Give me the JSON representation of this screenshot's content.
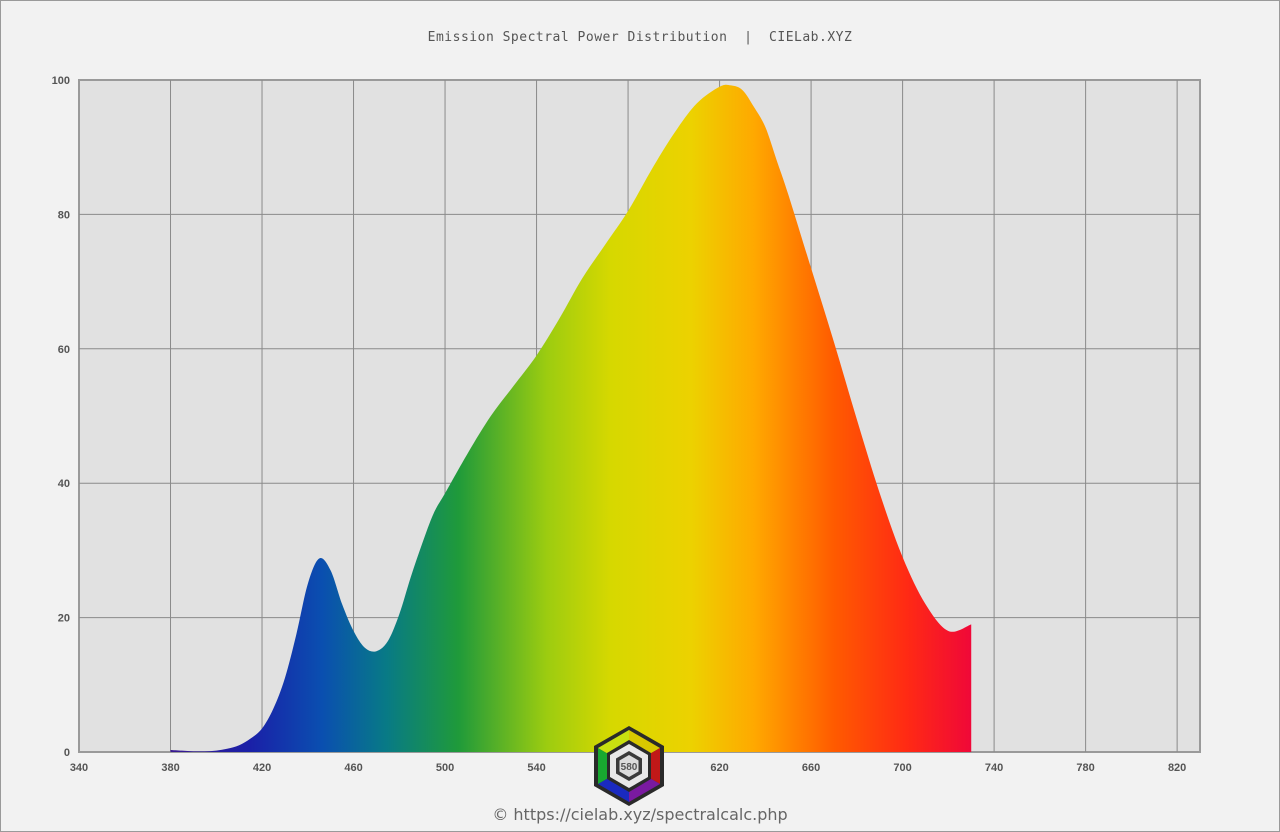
{
  "chart_data": {
    "type": "area",
    "title": "Emission Spectral Power Distribution  |  CIELab.XYZ",
    "xlabel": "",
    "ylabel": "",
    "xlim": [
      340,
      830
    ],
    "ylim": [
      0,
      100
    ],
    "x_ticks": [
      340,
      380,
      420,
      460,
      500,
      540,
      580,
      620,
      660,
      700,
      740,
      780,
      820
    ],
    "y_ticks": [
      0,
      20,
      40,
      60,
      80,
      100
    ],
    "grid": true,
    "legend": "none",
    "fill": "spectral rainbow gradient by wavelength",
    "series": [
      {
        "x": [
          380,
          385,
          390,
          395,
          400,
          405,
          410,
          415,
          420,
          425,
          430,
          435,
          440,
          445,
          450,
          455,
          460,
          465,
          470,
          475,
          480,
          485,
          490,
          495,
          500,
          510,
          520,
          530,
          540,
          550,
          560,
          570,
          580,
          590,
          600,
          610,
          620,
          625,
          630,
          635,
          640,
          645,
          650,
          660,
          670,
          680,
          690,
          700,
          710,
          720,
          730
        ],
        "y": [
          0.3,
          0.2,
          0.1,
          0.1,
          0.2,
          0.5,
          1.0,
          2.0,
          3.5,
          6.5,
          11.0,
          17.5,
          25.0,
          28.8,
          27.0,
          22.0,
          18.0,
          15.5,
          15.0,
          16.5,
          20.5,
          26.0,
          31.0,
          35.5,
          38.5,
          44.5,
          50.0,
          54.5,
          59.0,
          64.5,
          70.5,
          75.5,
          80.5,
          86.5,
          92.0,
          96.5,
          99.0,
          99.2,
          98.5,
          96.0,
          93.0,
          88.0,
          83.0,
          72.0,
          61.0,
          49.5,
          38.5,
          29.0,
          22.0,
          18.0,
          19.0
        ]
      }
    ]
  },
  "footer": {
    "text": "© https://cielab.xyz/spectralcalc.php",
    "logo_label": "580"
  }
}
